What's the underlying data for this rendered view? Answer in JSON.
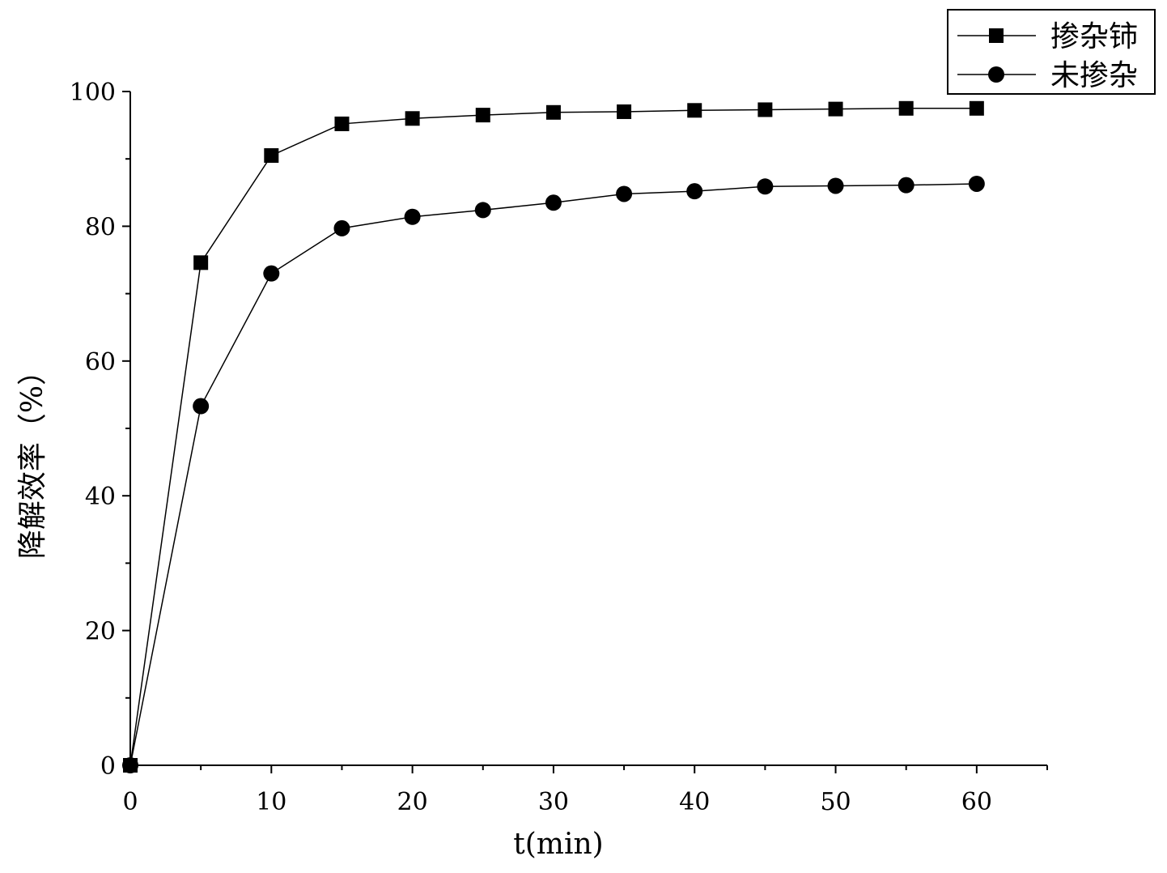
{
  "chart_data": {
    "type": "line",
    "x": [
      0,
      5,
      10,
      15,
      20,
      25,
      30,
      35,
      40,
      45,
      50,
      55,
      60
    ],
    "series": [
      {
        "name": "掺杂铈",
        "marker": "square",
        "values": [
          0,
          74.6,
          90.5,
          95.2,
          96.0,
          96.5,
          96.9,
          97.0,
          97.2,
          97.3,
          97.4,
          97.5,
          97.5
        ]
      },
      {
        "name": "未掺杂",
        "marker": "circle",
        "values": [
          0,
          53.3,
          73.0,
          79.7,
          81.4,
          82.4,
          83.5,
          84.8,
          85.2,
          85.9,
          86.0,
          86.1,
          86.3
        ]
      }
    ],
    "xlabel": "t(min)",
    "ylabel": "降解效率（%）",
    "xlim": [
      0,
      65
    ],
    "ylim": [
      0,
      100
    ],
    "xticks": [
      0,
      10,
      20,
      30,
      40,
      50,
      60
    ],
    "yticks": [
      0,
      20,
      40,
      60,
      80,
      100
    ],
    "grid": false,
    "legend_position": "top-right",
    "color": "#000000"
  }
}
